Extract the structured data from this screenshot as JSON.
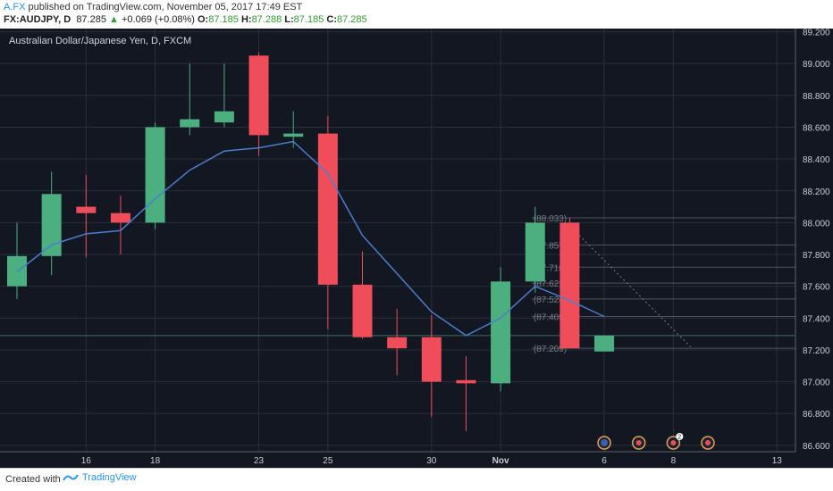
{
  "header": {
    "author": "A.FX",
    "published": " published on TradingView.com, November 05, 2017 17:49 EST",
    "symbol_line": {
      "symbol": "FX:AUDJPY, D",
      "last": "87.285",
      "change_arrow": "▲",
      "change": "+0.069 (+0.08%)",
      "o_label": "O:",
      "o_value": "87.185",
      "h_label": "H:",
      "h_value": "87.288",
      "l_label": "L:",
      "l_value": "87.185",
      "c_label": "C:",
      "c_value": "87.285"
    }
  },
  "footer": {
    "created_with": "Created with",
    "brand": "TradingView"
  },
  "colors": {
    "background": "#131722",
    "up": "#4caf80",
    "down": "#ef4d5a",
    "ma": "#4a7fcf",
    "grid": "#2a2e39",
    "axis_text": "#c8cbd2"
  },
  "chart_data": {
    "type": "candlestick",
    "title": "Australian Dollar/Japanese Yen, D, FXCM",
    "ylim": [
      86.56,
      89.22
    ],
    "y_ticks": [
      "89.200",
      "89.000",
      "88.800",
      "88.600",
      "88.400",
      "88.200",
      "88.000",
      "87.800",
      "87.600",
      "87.400",
      "87.200",
      "87.000",
      "86.800",
      "86.600"
    ],
    "x_ticks": [
      {
        "label": "16",
        "index": 2
      },
      {
        "label": "18",
        "index": 4
      },
      {
        "label": "23",
        "index": 7
      },
      {
        "label": "25",
        "index": 9
      },
      {
        "label": "30",
        "index": 12
      },
      {
        "label": "Nov",
        "index": 14
      },
      {
        "label": "6",
        "index": 17
      },
      {
        "label": "8",
        "index": 19
      },
      {
        "label": "13",
        "index": 22
      }
    ],
    "candles": [
      {
        "o": 87.6,
        "h": 88.0,
        "l": 87.52,
        "c": 87.79
      },
      {
        "o": 87.79,
        "h": 88.32,
        "l": 87.67,
        "c": 88.18
      },
      {
        "o": 88.1,
        "h": 88.3,
        "l": 87.78,
        "c": 88.06
      },
      {
        "o": 88.06,
        "h": 88.17,
        "l": 87.8,
        "c": 88.0
      },
      {
        "o": 88.0,
        "h": 88.63,
        "l": 87.96,
        "c": 88.6
      },
      {
        "o": 88.6,
        "h": 89.0,
        "l": 88.55,
        "c": 88.65
      },
      {
        "o": 88.63,
        "h": 89.0,
        "l": 88.6,
        "c": 88.7
      },
      {
        "o": 89.05,
        "h": 89.07,
        "l": 88.42,
        "c": 88.55
      },
      {
        "o": 88.54,
        "h": 88.7,
        "l": 88.47,
        "c": 88.56
      },
      {
        "o": 88.56,
        "h": 88.67,
        "l": 87.33,
        "c": 87.61
      },
      {
        "o": 87.61,
        "h": 87.82,
        "l": 87.27,
        "c": 87.28
      },
      {
        "o": 87.28,
        "h": 87.46,
        "l": 87.04,
        "c": 87.21
      },
      {
        "o": 87.28,
        "h": 87.42,
        "l": 86.78,
        "c": 87.0
      },
      {
        "o": 87.01,
        "h": 87.16,
        "l": 86.69,
        "c": 86.99
      },
      {
        "o": 86.99,
        "h": 87.72,
        "l": 86.94,
        "c": 87.63
      },
      {
        "o": 87.63,
        "h": 88.1,
        "l": 87.56,
        "c": 88.0
      },
      {
        "o": 88.0,
        "h": 88.03,
        "l": 87.21,
        "c": 87.21
      },
      {
        "o": 87.19,
        "h": 87.29,
        "l": 87.19,
        "c": 87.29
      }
    ],
    "ma_index_start": 0,
    "ma_values": [
      87.69,
      87.86,
      87.93,
      87.95,
      88.15,
      88.33,
      88.45,
      88.47,
      88.51,
      88.31,
      87.92,
      87.68,
      87.44,
      87.29,
      87.4,
      87.6,
      87.51,
      87.41
    ],
    "fib_levels": [
      {
        "label": "(88.033)",
        "value": 88.03
      },
      {
        "label": "(87.857)",
        "value": 87.86
      },
      {
        "label": "(87.718)",
        "value": 87.72
      },
      {
        "label": "(87.621)",
        "value": 87.62
      },
      {
        "label": "(87.524)",
        "value": 87.52
      },
      {
        "label": "(87.405)",
        "value": 87.41
      },
      {
        "label": "(87.209)",
        "value": 87.21
      }
    ],
    "fib_x": {
      "from": 14.9,
      "to": 22.6
    },
    "trendline": {
      "x1": 16.0,
      "y1": 87.98,
      "x2": 19.5,
      "y2": 87.22
    },
    "horizontal_line": 87.29,
    "events": [
      {
        "name": "flag-event",
        "index": 17
      },
      {
        "name": "event-dot",
        "index": 18
      },
      {
        "name": "event-dot-badge",
        "index": 19,
        "badge": "2"
      },
      {
        "name": "event-dot",
        "index": 20
      }
    ]
  }
}
